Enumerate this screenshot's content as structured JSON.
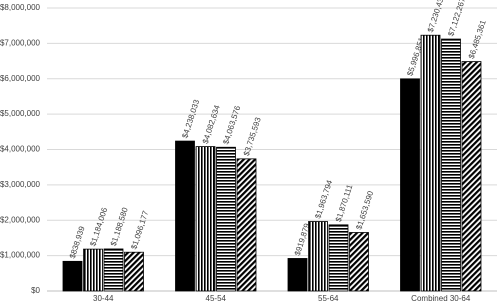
{
  "chart_data": {
    "type": "bar",
    "categories": [
      "30-44",
      "45-54",
      "55-64",
      "Combined 30-64"
    ],
    "series": [
      {
        "color": "#000000",
        "pattern": "solid",
        "values": [
          838939,
          4238033,
          919879,
          5996851
        ],
        "value_labels": [
          "$838,939",
          "$4,238,033",
          "$919,879",
          "$5,996,851"
        ]
      },
      {
        "color": "#000000",
        "pattern": "vertical",
        "values": [
          1184006,
          4082634,
          1963794,
          7230434
        ],
        "value_labels": [
          "$1,184,006",
          "$4,082,634",
          "$1,963,794",
          "$7,230,434"
        ]
      },
      {
        "color": "#000000",
        "pattern": "horizontal",
        "values": [
          1188580,
          4063576,
          1870111,
          7122267
        ],
        "value_labels": [
          "$1,188,580",
          "$4,063,576",
          "$1,870,111",
          "$7,122,267"
        ]
      },
      {
        "color": "#000000",
        "pattern": "diagonal",
        "values": [
          1096177,
          3735593,
          1653590,
          6485361
        ],
        "value_labels": [
          "$1,096,177",
          "$3,735,593",
          "$1,653,590",
          "$6,485,361"
        ]
      }
    ],
    "ylim": [
      0,
      8000000
    ],
    "yticks": [
      {
        "value": 0,
        "label": "$0"
      },
      {
        "value": 1000000,
        "label": "$1,000,000"
      },
      {
        "value": 2000000,
        "label": "$2,000,000"
      },
      {
        "value": 3000000,
        "label": "$3,000,000"
      },
      {
        "value": 4000000,
        "label": "$4,000,000"
      },
      {
        "value": 5000000,
        "label": "$5,000,000"
      },
      {
        "value": 6000000,
        "label": "$6,000,000"
      },
      {
        "value": 7000000,
        "label": "$7,000,000"
      },
      {
        "value": 8000000,
        "label": "$8,000,000"
      }
    ],
    "grid": true
  }
}
